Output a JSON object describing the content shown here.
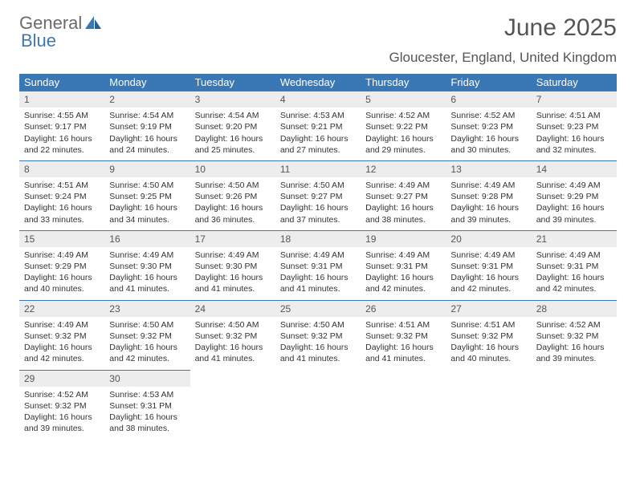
{
  "logo": {
    "word1": "General",
    "word2": "Blue"
  },
  "title": "June 2025",
  "location": "Gloucester, England, United Kingdom",
  "colors": {
    "header_bg": "#3a78b5",
    "header_text": "#ffffff",
    "daynum_bg": "#ededed",
    "border": "#3a78b5",
    "body_text": "#333333",
    "title_text": "#555555"
  },
  "fonts": {
    "title_pt": 30,
    "location_pt": 17,
    "header_pt": 13,
    "body_pt": 10.5
  },
  "weekdays": [
    "Sunday",
    "Monday",
    "Tuesday",
    "Wednesday",
    "Thursday",
    "Friday",
    "Saturday"
  ],
  "weeks": [
    [
      {
        "num": "1",
        "sunrise": "Sunrise: 4:55 AM",
        "sunset": "Sunset: 9:17 PM",
        "daylight": "Daylight: 16 hours and 22 minutes."
      },
      {
        "num": "2",
        "sunrise": "Sunrise: 4:54 AM",
        "sunset": "Sunset: 9:19 PM",
        "daylight": "Daylight: 16 hours and 24 minutes."
      },
      {
        "num": "3",
        "sunrise": "Sunrise: 4:54 AM",
        "sunset": "Sunset: 9:20 PM",
        "daylight": "Daylight: 16 hours and 25 minutes."
      },
      {
        "num": "4",
        "sunrise": "Sunrise: 4:53 AM",
        "sunset": "Sunset: 9:21 PM",
        "daylight": "Daylight: 16 hours and 27 minutes."
      },
      {
        "num": "5",
        "sunrise": "Sunrise: 4:52 AM",
        "sunset": "Sunset: 9:22 PM",
        "daylight": "Daylight: 16 hours and 29 minutes."
      },
      {
        "num": "6",
        "sunrise": "Sunrise: 4:52 AM",
        "sunset": "Sunset: 9:23 PM",
        "daylight": "Daylight: 16 hours and 30 minutes."
      },
      {
        "num": "7",
        "sunrise": "Sunrise: 4:51 AM",
        "sunset": "Sunset: 9:23 PM",
        "daylight": "Daylight: 16 hours and 32 minutes."
      }
    ],
    [
      {
        "num": "8",
        "sunrise": "Sunrise: 4:51 AM",
        "sunset": "Sunset: 9:24 PM",
        "daylight": "Daylight: 16 hours and 33 minutes."
      },
      {
        "num": "9",
        "sunrise": "Sunrise: 4:50 AM",
        "sunset": "Sunset: 9:25 PM",
        "daylight": "Daylight: 16 hours and 34 minutes."
      },
      {
        "num": "10",
        "sunrise": "Sunrise: 4:50 AM",
        "sunset": "Sunset: 9:26 PM",
        "daylight": "Daylight: 16 hours and 36 minutes."
      },
      {
        "num": "11",
        "sunrise": "Sunrise: 4:50 AM",
        "sunset": "Sunset: 9:27 PM",
        "daylight": "Daylight: 16 hours and 37 minutes."
      },
      {
        "num": "12",
        "sunrise": "Sunrise: 4:49 AM",
        "sunset": "Sunset: 9:27 PM",
        "daylight": "Daylight: 16 hours and 38 minutes."
      },
      {
        "num": "13",
        "sunrise": "Sunrise: 4:49 AM",
        "sunset": "Sunset: 9:28 PM",
        "daylight": "Daylight: 16 hours and 39 minutes."
      },
      {
        "num": "14",
        "sunrise": "Sunrise: 4:49 AM",
        "sunset": "Sunset: 9:29 PM",
        "daylight": "Daylight: 16 hours and 39 minutes."
      }
    ],
    [
      {
        "num": "15",
        "sunrise": "Sunrise: 4:49 AM",
        "sunset": "Sunset: 9:29 PM",
        "daylight": "Daylight: 16 hours and 40 minutes."
      },
      {
        "num": "16",
        "sunrise": "Sunrise: 4:49 AM",
        "sunset": "Sunset: 9:30 PM",
        "daylight": "Daylight: 16 hours and 41 minutes."
      },
      {
        "num": "17",
        "sunrise": "Sunrise: 4:49 AM",
        "sunset": "Sunset: 9:30 PM",
        "daylight": "Daylight: 16 hours and 41 minutes."
      },
      {
        "num": "18",
        "sunrise": "Sunrise: 4:49 AM",
        "sunset": "Sunset: 9:31 PM",
        "daylight": "Daylight: 16 hours and 41 minutes."
      },
      {
        "num": "19",
        "sunrise": "Sunrise: 4:49 AM",
        "sunset": "Sunset: 9:31 PM",
        "daylight": "Daylight: 16 hours and 42 minutes."
      },
      {
        "num": "20",
        "sunrise": "Sunrise: 4:49 AM",
        "sunset": "Sunset: 9:31 PM",
        "daylight": "Daylight: 16 hours and 42 minutes."
      },
      {
        "num": "21",
        "sunrise": "Sunrise: 4:49 AM",
        "sunset": "Sunset: 9:31 PM",
        "daylight": "Daylight: 16 hours and 42 minutes."
      }
    ],
    [
      {
        "num": "22",
        "sunrise": "Sunrise: 4:49 AM",
        "sunset": "Sunset: 9:32 PM",
        "daylight": "Daylight: 16 hours and 42 minutes."
      },
      {
        "num": "23",
        "sunrise": "Sunrise: 4:50 AM",
        "sunset": "Sunset: 9:32 PM",
        "daylight": "Daylight: 16 hours and 42 minutes."
      },
      {
        "num": "24",
        "sunrise": "Sunrise: 4:50 AM",
        "sunset": "Sunset: 9:32 PM",
        "daylight": "Daylight: 16 hours and 41 minutes."
      },
      {
        "num": "25",
        "sunrise": "Sunrise: 4:50 AM",
        "sunset": "Sunset: 9:32 PM",
        "daylight": "Daylight: 16 hours and 41 minutes."
      },
      {
        "num": "26",
        "sunrise": "Sunrise: 4:51 AM",
        "sunset": "Sunset: 9:32 PM",
        "daylight": "Daylight: 16 hours and 41 minutes."
      },
      {
        "num": "27",
        "sunrise": "Sunrise: 4:51 AM",
        "sunset": "Sunset: 9:32 PM",
        "daylight": "Daylight: 16 hours and 40 minutes."
      },
      {
        "num": "28",
        "sunrise": "Sunrise: 4:52 AM",
        "sunset": "Sunset: 9:32 PM",
        "daylight": "Daylight: 16 hours and 39 minutes."
      }
    ],
    [
      {
        "num": "29",
        "sunrise": "Sunrise: 4:52 AM",
        "sunset": "Sunset: 9:32 PM",
        "daylight": "Daylight: 16 hours and 39 minutes."
      },
      {
        "num": "30",
        "sunrise": "Sunrise: 4:53 AM",
        "sunset": "Sunset: 9:31 PM",
        "daylight": "Daylight: 16 hours and 38 minutes."
      },
      null,
      null,
      null,
      null,
      null
    ]
  ]
}
